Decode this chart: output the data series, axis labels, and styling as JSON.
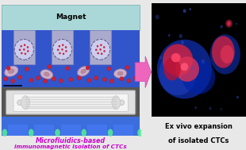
{
  "overall_bg": "#e8e8e8",
  "magnet_bar_color": "#aad8d8",
  "magnet_text": "Magnet",
  "magnet_text_color": "#000000",
  "magnet_text_size": 6.5,
  "channel_bg": "#3355cc",
  "pillar_color": "#8888bb",
  "pillar_outline": "#6666aa",
  "bead_color": "#cc2233",
  "cell_fill": "#ddbbcc",
  "cell_edge": "#aa7788",
  "arrow_color": "#dd55aa",
  "right_panel_bg": "#000000",
  "right_text_line1": "Ex vivo expansion",
  "right_text_line2": "of isolated CTCs",
  "bottom_text_line1": "Microfluidics-based",
  "bottom_text_line2": "immunomagnetic isolation of CTCs",
  "bottom_text_color": "#cc00cc",
  "chip_outer": "#999999",
  "chip_inner": "#cccccc",
  "chip_bg_dark": "#444444",
  "glow_blue": "#2255ee",
  "glow_green": "#44ee88",
  "glow_cyan": "#00ccff",
  "white_bg": "#ffffff"
}
